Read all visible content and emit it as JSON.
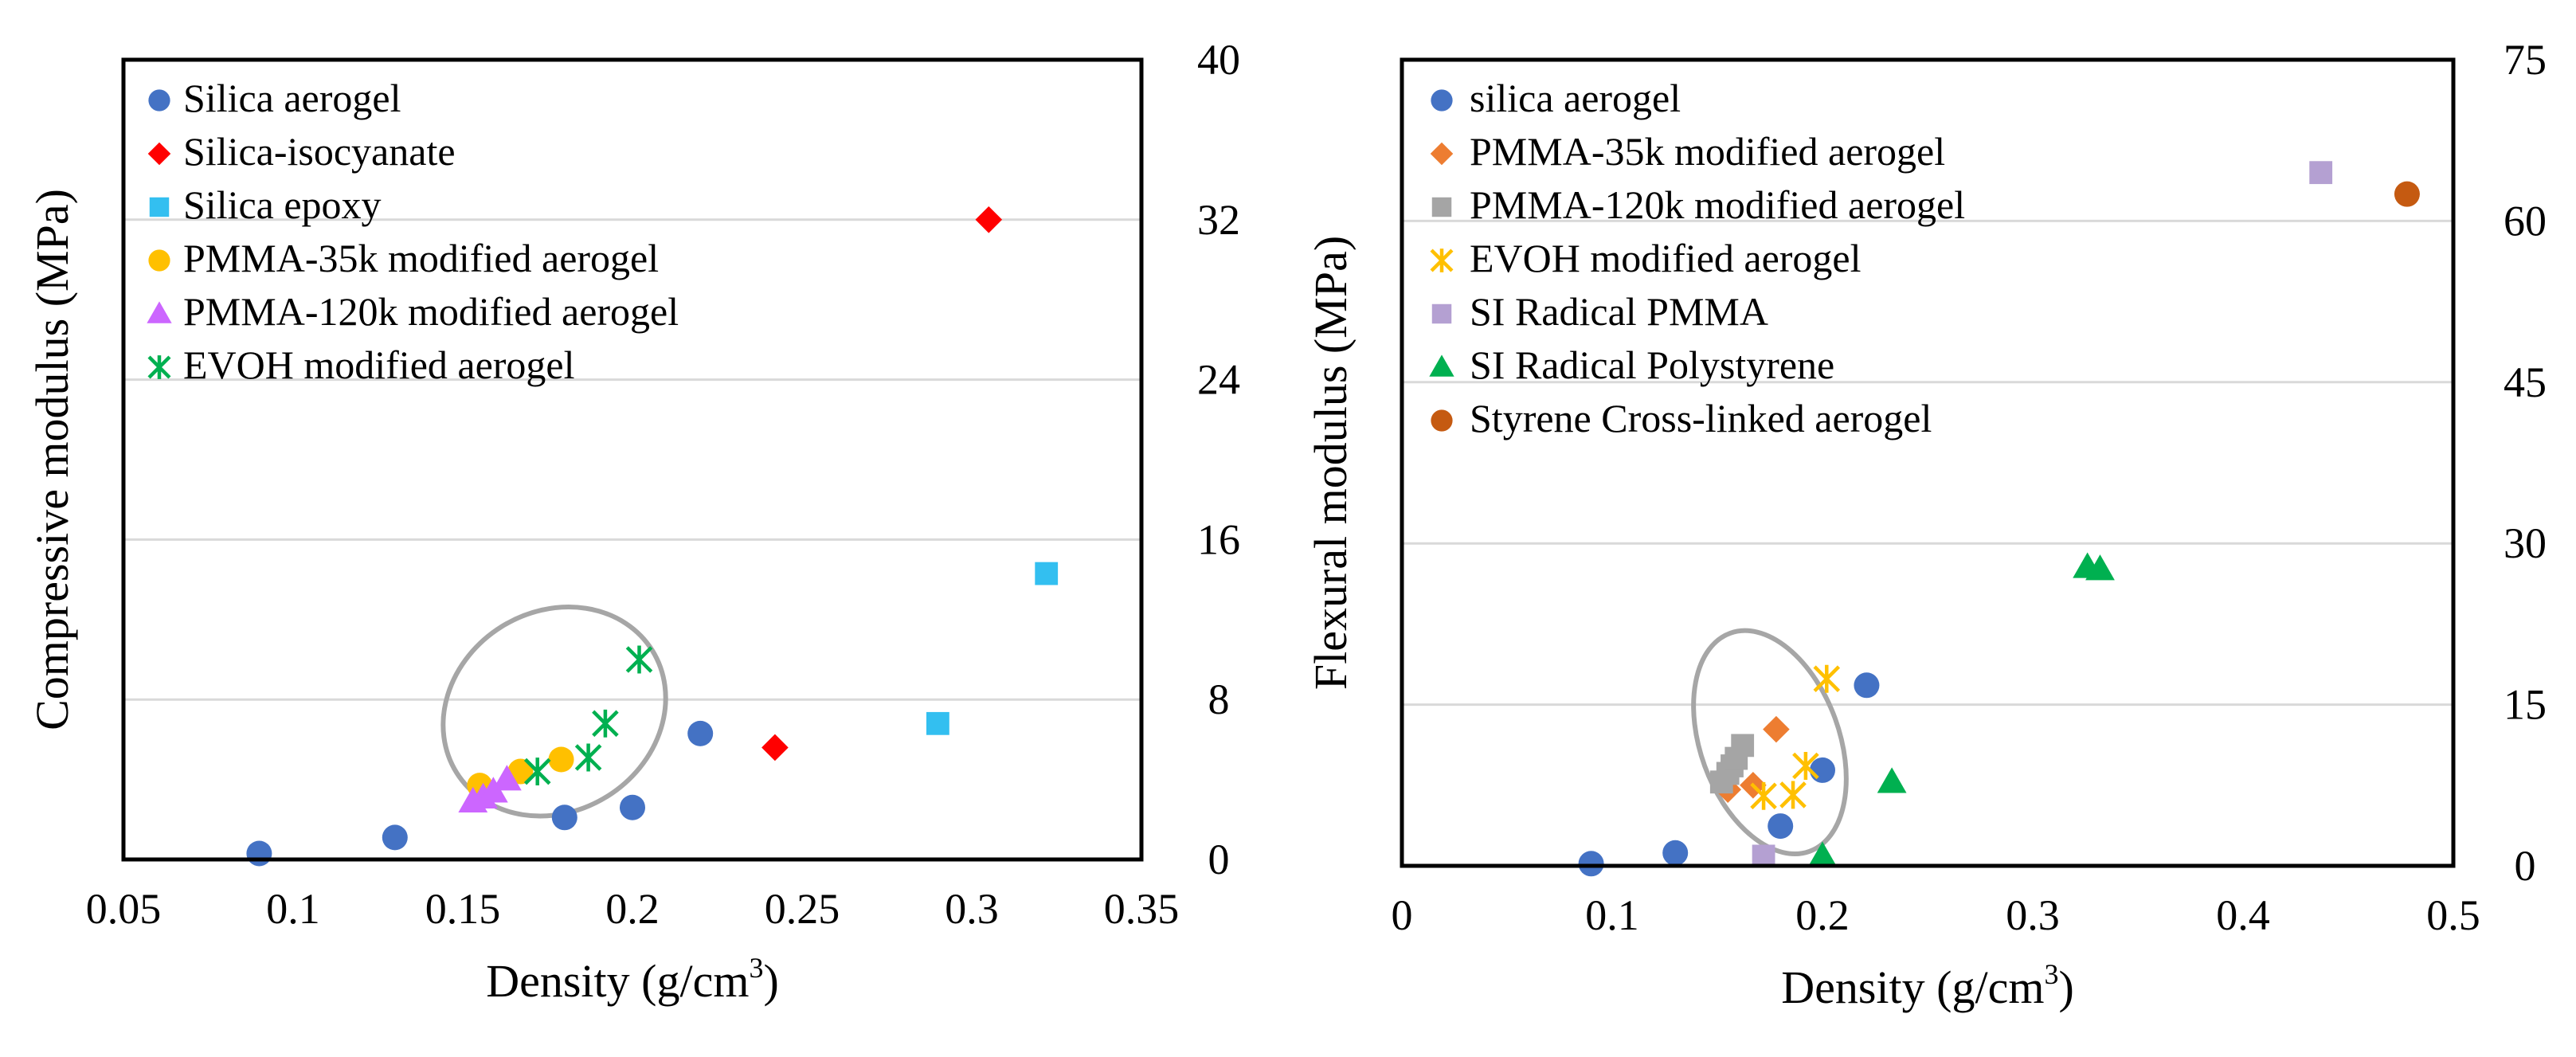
{
  "chart_data": [
    {
      "type": "scatter",
      "title": "",
      "xlabel": "Density (g/cm",
      "xlabel_sup": "3",
      "xlabel_close": ")",
      "ylabel": "Compressive modulus (MPa)",
      "xlim": [
        0.05,
        0.35
      ],
      "ylim": [
        0,
        40
      ],
      "x_ticks": [
        "0.05",
        "0.1",
        "0.15",
        "0.2",
        "0.25",
        "0.3",
        "0.35"
      ],
      "x_tick_values": [
        0.05,
        0.1,
        0.15,
        0.2,
        0.25,
        0.3,
        0.35
      ],
      "y_ticks": [
        "0",
        "8",
        "16",
        "24",
        "32",
        "40"
      ],
      "y_tick_values": [
        0,
        8,
        16,
        24,
        32,
        40
      ],
      "y_axis_side": "right",
      "grid": true,
      "legend_position": "top-left",
      "annotation": "gray ellipse around modified aerogels",
      "highlight_ellipse": {
        "cx": 0.177,
        "cy": 7.4,
        "rx": 0.034,
        "ry": 5.0,
        "angle_deg": -32
      },
      "series": [
        {
          "name": "Silica aerogel",
          "marker": "circle",
          "color": "#4472C4",
          "points": [
            [
              0.09,
              0.3
            ],
            [
              0.13,
              1.1
            ],
            [
              0.18,
              2.1
            ],
            [
              0.2,
              2.6
            ],
            [
              0.22,
              6.3
            ]
          ]
        },
        {
          "name": "Silica-isocyanate",
          "marker": "diamond",
          "color": "#FF0000",
          "points": [
            [
              0.242,
              5.6
            ],
            [
              0.305,
              32.0
            ]
          ]
        },
        {
          "name": "Silica epoxy",
          "marker": "square",
          "color": "#33BFF0",
          "points": [
            [
              0.29,
              6.8
            ],
            [
              0.322,
              14.3
            ]
          ]
        },
        {
          "name": "PMMA-35k modified aerogel",
          "marker": "circle",
          "color": "#FFC000",
          "points": [
            [
              0.155,
              3.7
            ],
            [
              0.167,
              4.4
            ],
            [
              0.179,
              5.0
            ]
          ]
        },
        {
          "name": "PMMA-120k modified aerogel",
          "marker": "triangle",
          "color": "#CC66FF",
          "points": [
            [
              0.153,
              2.9
            ],
            [
              0.156,
              3.1
            ],
            [
              0.159,
              3.4
            ],
            [
              0.163,
              4.0
            ]
          ]
        },
        {
          "name": "EVOH modified aerogel",
          "marker": "asterisk",
          "color": "#00B050",
          "points": [
            [
              0.172,
              4.4
            ],
            [
              0.187,
              5.1
            ],
            [
              0.192,
              6.8
            ],
            [
              0.202,
              10.0
            ]
          ]
        }
      ]
    },
    {
      "type": "scatter",
      "title": "",
      "xlabel": "Density (g/cm",
      "xlabel_sup": "3",
      "xlabel_close": ")",
      "ylabel": "Flexural modulus (MPa)",
      "xlim": [
        0,
        0.5
      ],
      "ylim": [
        0,
        75
      ],
      "x_ticks": [
        "0",
        "0.1",
        "0.2",
        "0.3",
        "0.4",
        "0.5"
      ],
      "x_tick_values": [
        0,
        0.1,
        0.2,
        0.3,
        0.4,
        0.5
      ],
      "y_ticks": [
        "0",
        "15",
        "30",
        "45",
        "60",
        "75"
      ],
      "y_tick_values": [
        0,
        15,
        30,
        45,
        60,
        75
      ],
      "y_axis_side": "right",
      "grid": true,
      "legend_position": "top-left",
      "annotation": "gray ellipse around modified aerogels",
      "highlight_ellipse": {
        "cx": 0.175,
        "cy": 11.5,
        "rx": 0.033,
        "ry": 10.8,
        "angle_deg": -20
      },
      "series": [
        {
          "name": "silica aerogel",
          "marker": "circle",
          "color": "#4472C4",
          "points": [
            [
              0.09,
              0.2
            ],
            [
              0.13,
              1.2
            ],
            [
              0.18,
              3.7
            ],
            [
              0.2,
              8.9
            ],
            [
              0.221,
              16.8
            ]
          ]
        },
        {
          "name": "PMMA-35k modified aerogel",
          "marker": "diamond",
          "color": "#ED7D31",
          "points": [
            [
              0.155,
              7.1
            ],
            [
              0.167,
              7.5
            ],
            [
              0.178,
              12.7
            ]
          ]
        },
        {
          "name": "PMMA-120k modified aerogel",
          "marker": "square",
          "color": "#A5A5A5",
          "points": [
            [
              0.152,
              7.8
            ],
            [
              0.155,
              8.6
            ],
            [
              0.157,
              9.3
            ],
            [
              0.159,
              10.0
            ],
            [
              0.162,
              11.2
            ]
          ]
        },
        {
          "name": "EVOH modified aerogel",
          "marker": "asterisk",
          "color": "#FFC000",
          "points": [
            [
              0.172,
              6.5
            ],
            [
              0.186,
              6.6
            ],
            [
              0.192,
              9.3
            ],
            [
              0.202,
              17.4
            ]
          ]
        },
        {
          "name": "SI Radical PMMA",
          "marker": "square",
          "color": "#B4A0D2",
          "points": [
            [
              0.172,
              0.9
            ],
            [
              0.437,
              64.5
            ]
          ]
        },
        {
          "name": "SI Radical Polystyrene",
          "marker": "triangle",
          "color": "#00B050",
          "points": [
            [
              0.2,
              0.9
            ],
            [
              0.233,
              7.8
            ],
            [
              0.326,
              27.8
            ],
            [
              0.332,
              27.6
            ]
          ]
        },
        {
          "name": "Styrene Cross-linked aerogel",
          "marker": "circle",
          "color": "#C55A11",
          "points": [
            [
              0.478,
              62.5
            ]
          ]
        }
      ]
    }
  ]
}
